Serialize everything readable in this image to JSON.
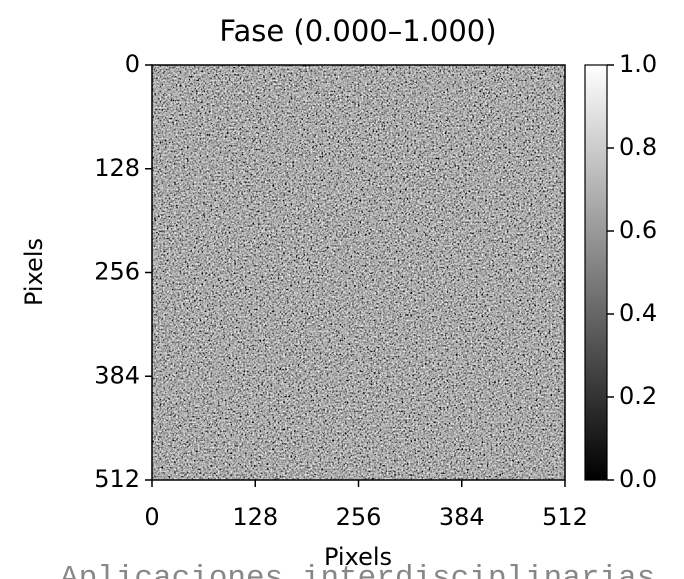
{
  "chart_data": {
    "type": "image",
    "title": "Fase (0.000–1.000)",
    "x_label": "Pixels",
    "y_label": "Pixels",
    "xlim": [
      0,
      512
    ],
    "ylim": [
      512,
      0
    ],
    "xticks": [
      0,
      128,
      256,
      384,
      512
    ],
    "yticks": [
      0,
      128,
      256,
      384,
      512
    ],
    "colormap": "gray",
    "colormap_colors": [
      "#000000",
      "#ffffff"
    ],
    "clim": [
      0,
      1
    ],
    "cticks": [
      {
        "value": 0,
        "label": "0.0"
      },
      0.2,
      0.4,
      0.6,
      0.8,
      {
        "value": 1,
        "label": "1.0"
      }
    ]
  },
  "footer_text": "Aplicaciones interdisciplinarias"
}
